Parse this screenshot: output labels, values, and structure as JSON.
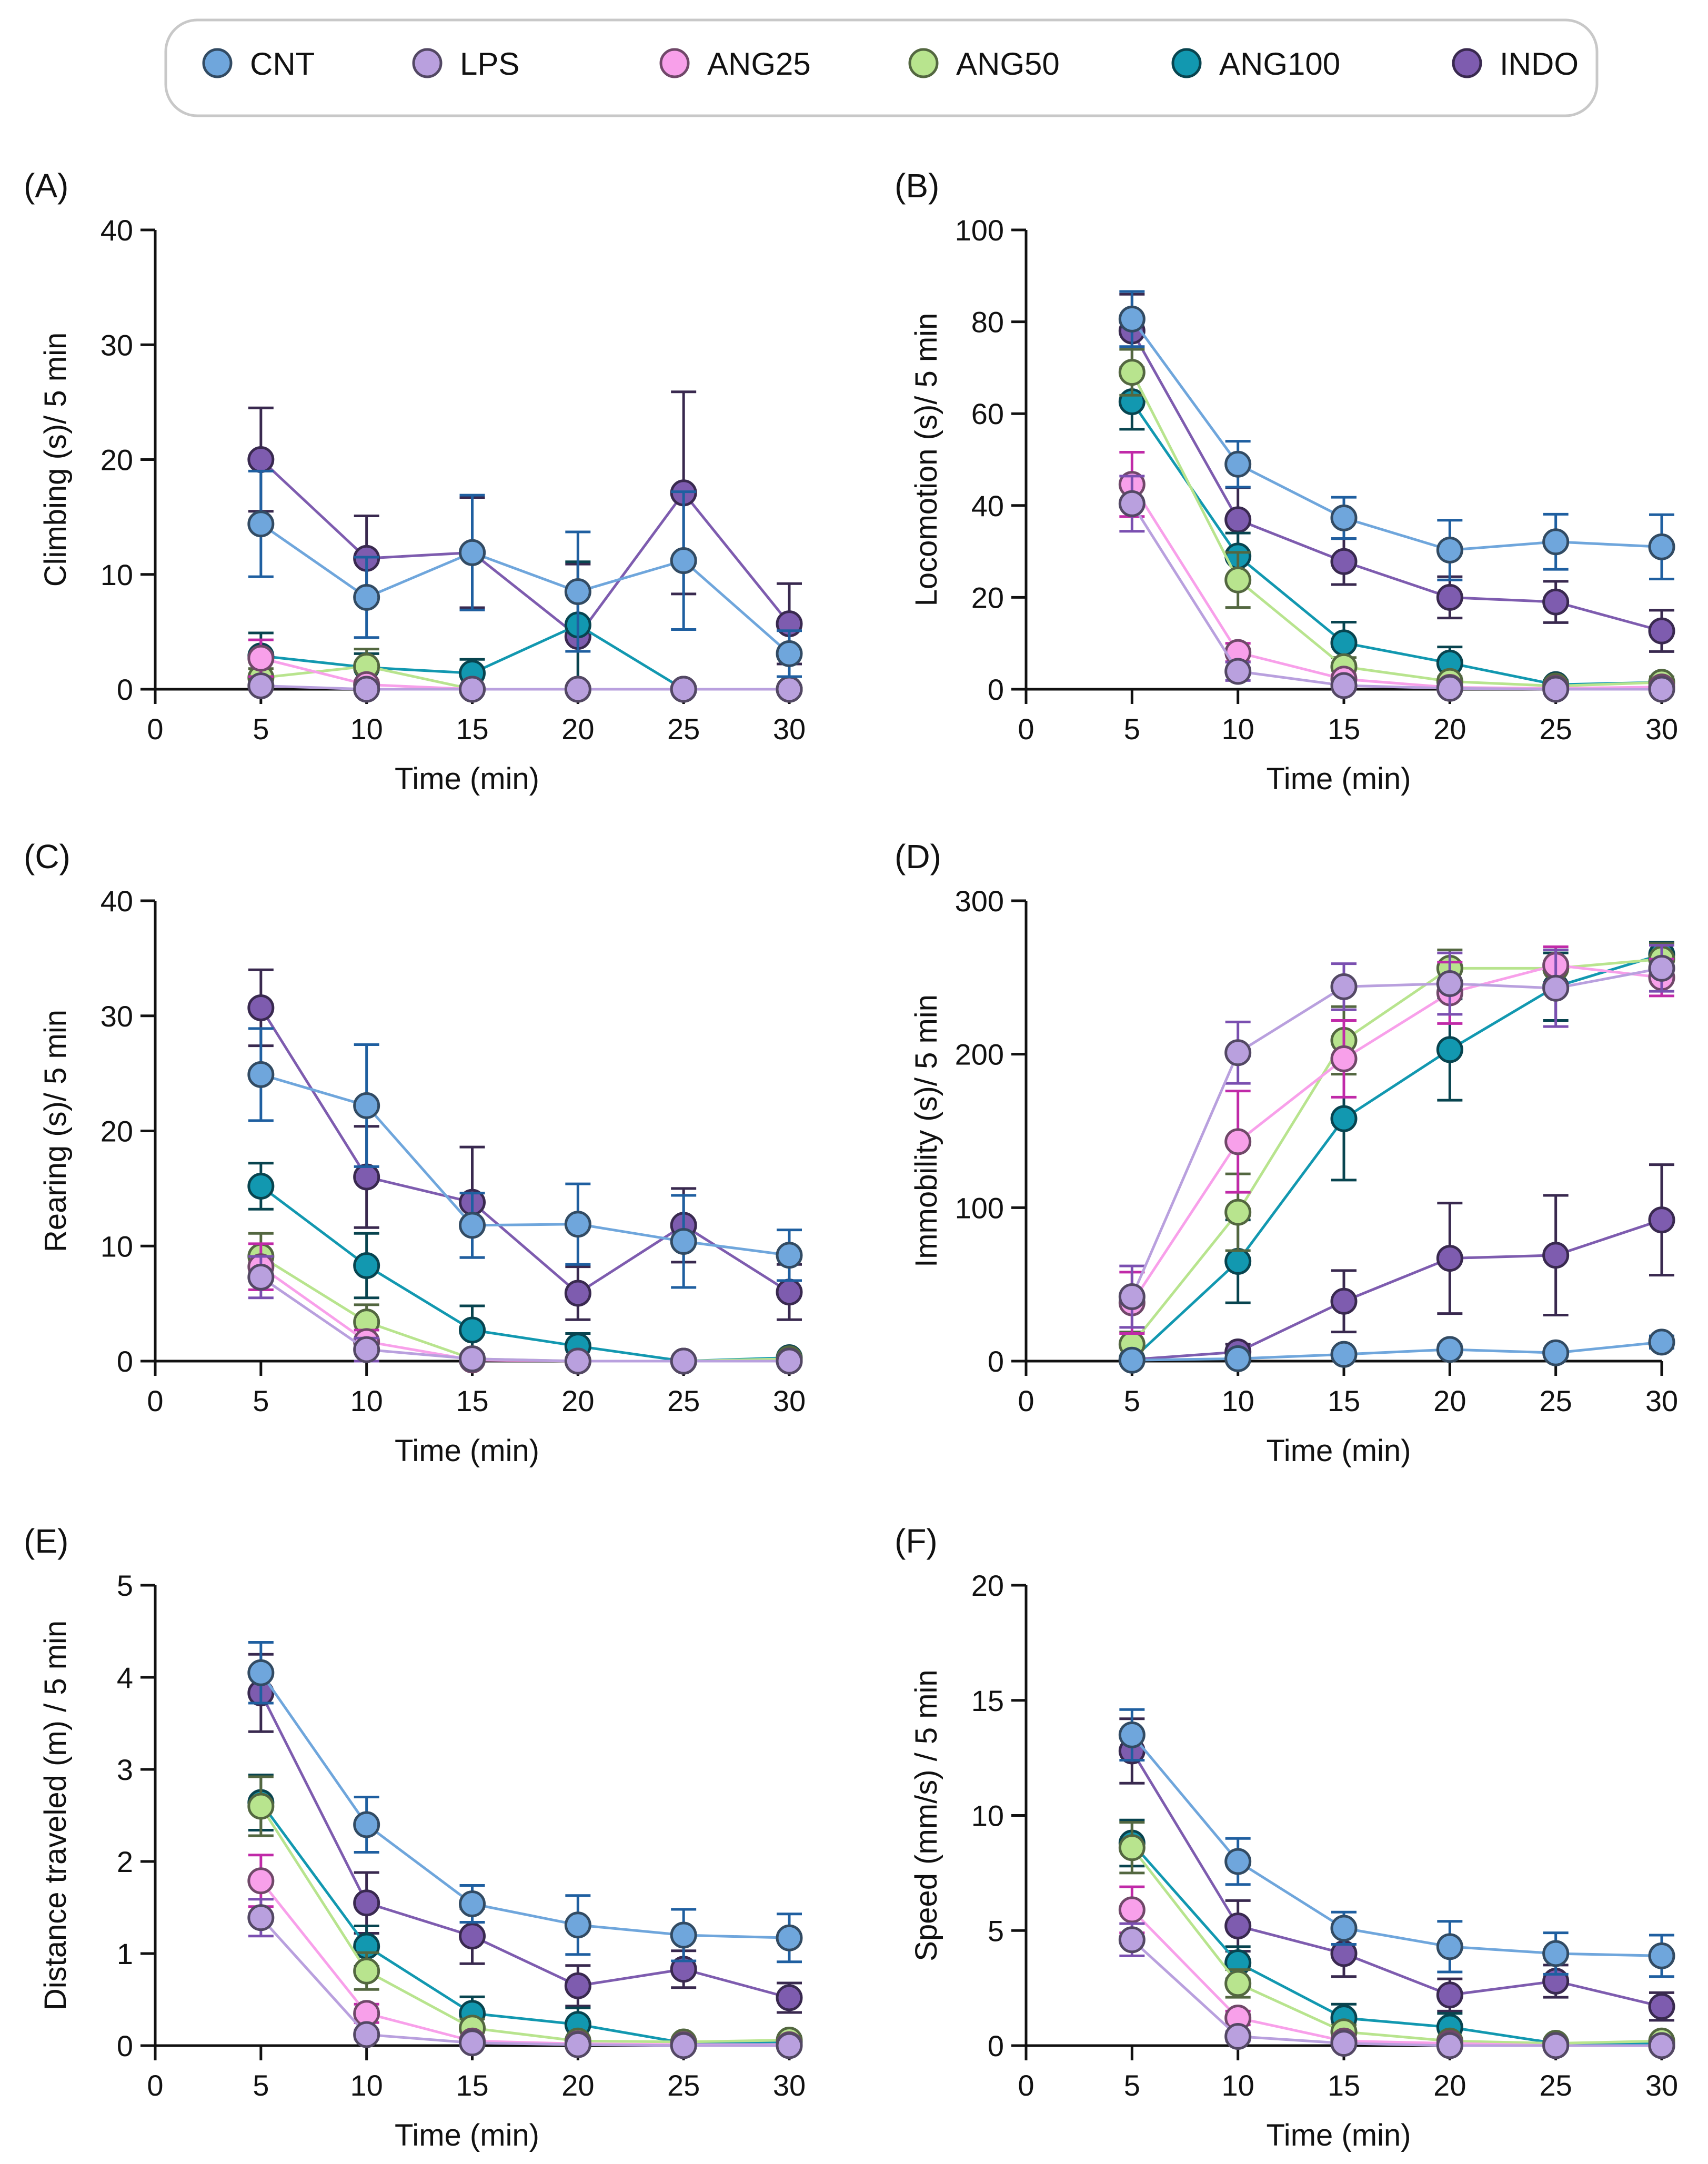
{
  "legend": {
    "entries": [
      {
        "key": "CNT",
        "label": "CNT",
        "color": "#6FA6DC"
      },
      {
        "key": "LPS",
        "label": "LPS",
        "color": "#B9A0DE"
      },
      {
        "key": "ANG25",
        "label": "ANG25",
        "color": "#F8A0EA"
      },
      {
        "key": "ANG50",
        "label": "ANG50",
        "color": "#B8E48E"
      },
      {
        "key": "ANG100",
        "label": "ANG100",
        "color": "#1298B0"
      },
      {
        "key": "INDO",
        "label": "INDO",
        "color": "#7E5CAF"
      }
    ]
  },
  "chart_data": [
    {
      "type": "line",
      "panel": "(A)",
      "ylabel": "Climbing (s)/ 5 min",
      "xlabel": "Time (min)",
      "ylim": [
        0,
        40
      ],
      "yticks": [
        0,
        10,
        20,
        30,
        40
      ],
      "xticks": [
        0,
        5,
        10,
        15,
        20,
        25,
        30
      ],
      "xlim": [
        0,
        30
      ],
      "x": [
        5,
        10,
        15,
        20,
        25,
        30
      ],
      "series": [
        {
          "name": "CNT",
          "values": [
            14.4,
            8.0,
            11.9,
            8.5,
            11.2,
            3.1
          ],
          "err": [
            4.6,
            3.5,
            5.0,
            5.2,
            6.0,
            2.0
          ]
        },
        {
          "name": "LPS",
          "values": [
            0.3,
            0,
            0,
            0,
            0,
            0
          ],
          "err": [
            0.3,
            0,
            0,
            0,
            0,
            0
          ]
        },
        {
          "name": "ANG25",
          "values": [
            2.7,
            0.4,
            0,
            0,
            0,
            0
          ],
          "err": [
            1.6,
            0.4,
            0,
            0,
            0,
            0
          ]
        },
        {
          "name": "ANG50",
          "values": [
            1.0,
            2.0,
            0,
            0,
            0,
            0
          ],
          "err": [
            0.8,
            1.5,
            0,
            0,
            0,
            0
          ]
        },
        {
          "name": "ANG100",
          "values": [
            2.9,
            1.9,
            1.4,
            5.6,
            0,
            0
          ],
          "err": [
            2.0,
            1.2,
            1.2,
            5.5,
            0,
            0
          ]
        },
        {
          "name": "INDO",
          "values": [
            20.0,
            11.4,
            11.9,
            4.6,
            17.1,
            5.7
          ],
          "err": [
            4.5,
            3.7,
            4.8,
            6.3,
            8.8,
            3.5
          ]
        }
      ]
    },
    {
      "type": "line",
      "panel": "(B)",
      "ylabel": "Locomotion (s)/ 5 min",
      "xlabel": "Time (min)",
      "ylim": [
        0,
        100
      ],
      "yticks": [
        0,
        20,
        40,
        60,
        80,
        100
      ],
      "xticks": [
        0,
        5,
        10,
        15,
        20,
        25,
        30
      ],
      "xlim": [
        0,
        30
      ],
      "x": [
        5,
        10,
        15,
        20,
        25,
        30
      ],
      "series": [
        {
          "name": "CNT",
          "values": [
            80.6,
            49.0,
            37.3,
            30.3,
            32.1,
            31.0
          ],
          "err": [
            6.0,
            5.0,
            4.5,
            6.5,
            6.0,
            7.0
          ]
        },
        {
          "name": "LPS",
          "values": [
            40.4,
            3.9,
            0.8,
            0.2,
            0,
            0
          ],
          "err": [
            6.0,
            2.0,
            0.8,
            0.2,
            0,
            0
          ]
        },
        {
          "name": "ANG25",
          "values": [
            44.6,
            8.0,
            2.2,
            0.4,
            0.2,
            0.5
          ],
          "err": [
            7.0,
            2.0,
            1.0,
            0.4,
            0.2,
            0.5
          ]
        },
        {
          "name": "ANG50",
          "values": [
            69.0,
            23.8,
            4.9,
            1.7,
            0.7,
            1.5
          ],
          "err": [
            5.0,
            6.0,
            2.0,
            1.0,
            0.7,
            1.2
          ]
        },
        {
          "name": "ANG100",
          "values": [
            62.6,
            29.0,
            10.1,
            5.7,
            1.0,
            1.5
          ],
          "err": [
            6.0,
            5.0,
            4.5,
            3.5,
            1.0,
            1.2
          ]
        },
        {
          "name": "INDO",
          "values": [
            78.0,
            36.9,
            27.8,
            20.0,
            19.0,
            12.7
          ],
          "err": [
            8.0,
            7.0,
            5.0,
            4.5,
            4.5,
            4.5
          ]
        }
      ]
    },
    {
      "type": "line",
      "panel": "(C)",
      "ylabel": "Rearing (s)/ 5 min",
      "xlabel": "Time (min)",
      "ylim": [
        0,
        40
      ],
      "yticks": [
        0,
        10,
        20,
        30,
        40
      ],
      "xticks": [
        0,
        5,
        10,
        15,
        20,
        25,
        30
      ],
      "xlim": [
        0,
        30
      ],
      "x": [
        5,
        10,
        15,
        20,
        25,
        30
      ],
      "series": [
        {
          "name": "CNT",
          "values": [
            24.9,
            22.2,
            11.8,
            11.9,
            10.4,
            9.2
          ],
          "err": [
            4.0,
            5.3,
            2.8,
            3.5,
            4.0,
            2.2
          ]
        },
        {
          "name": "LPS",
          "values": [
            7.3,
            1.0,
            0.2,
            0,
            0,
            0
          ],
          "err": [
            1.8,
            1.0,
            0.2,
            0,
            0,
            0
          ]
        },
        {
          "name": "ANG25",
          "values": [
            8.2,
            1.7,
            0.1,
            0,
            0,
            0
          ],
          "err": [
            2.0,
            1.0,
            0.1,
            0,
            0,
            0
          ]
        },
        {
          "name": "ANG50",
          "values": [
            9.1,
            3.4,
            0.2,
            0,
            0,
            0.2
          ],
          "err": [
            2.0,
            1.5,
            0.2,
            0,
            0,
            0.2
          ]
        },
        {
          "name": "ANG100",
          "values": [
            15.2,
            8.3,
            2.7,
            1.3,
            0,
            0.3
          ],
          "err": [
            2.0,
            2.8,
            2.1,
            1.1,
            0,
            0.3
          ]
        },
        {
          "name": "INDO",
          "values": [
            30.7,
            16.0,
            13.8,
            5.9,
            11.8,
            6.0
          ],
          "err": [
            3.3,
            4.4,
            4.8,
            2.3,
            3.2,
            2.4
          ]
        }
      ]
    },
    {
      "type": "line",
      "panel": "(D)",
      "ylabel": "Immobility (s)/ 5 min",
      "xlabel": "Time (min)",
      "ylim": [
        0,
        300
      ],
      "yticks": [
        0,
        100,
        200,
        300
      ],
      "xticks": [
        0,
        5,
        10,
        15,
        20,
        25,
        30
      ],
      "xlim": [
        0,
        30
      ],
      "x": [
        5,
        10,
        15,
        20,
        25,
        30
      ],
      "series": [
        {
          "name": "CNT",
          "values": [
            0.6,
            1.6,
            4.4,
            7.6,
            5.4,
            12.4
          ],
          "err": [
            0.6,
            1.5,
            2.0,
            3.0,
            2.5,
            4.0
          ]
        },
        {
          "name": "LPS",
          "values": [
            42.0,
            201.0,
            244.0,
            246.0,
            243.0,
            256.0
          ],
          "err": [
            20.0,
            20.0,
            15.0,
            20.0,
            25.0,
            15.0
          ]
        },
        {
          "name": "ANG25",
          "values": [
            38.0,
            143.0,
            197.0,
            240.0,
            258.0,
            250.0
          ],
          "err": [
            20.0,
            33.0,
            25.0,
            20.0,
            12.0,
            12.0
          ]
        },
        {
          "name": "ANG50",
          "values": [
            11.0,
            97.0,
            209.0,
            256.0,
            256.0,
            262.0
          ],
          "err": [
            8.0,
            25.0,
            22.0,
            12.0,
            12.0,
            10.0
          ]
        },
        {
          "name": "ANG100",
          "values": [
            1.0,
            65.0,
            158.0,
            203.0,
            244.0,
            265.0
          ],
          "err": [
            1.0,
            27.0,
            40.0,
            33.0,
            22.0,
            8.0
          ]
        },
        {
          "name": "INDO",
          "values": [
            1.0,
            6.0,
            39.0,
            67.0,
            69.0,
            92.0
          ],
          "err": [
            1.0,
            5.0,
            20.0,
            36.0,
            39.0,
            36.0
          ]
        }
      ]
    },
    {
      "type": "line",
      "panel": "(E)",
      "ylabel": "Distance traveled (m) / 5 min",
      "xlabel": "Time (min)",
      "ylim": [
        0,
        5
      ],
      "yticks": [
        0,
        1,
        2,
        3,
        4,
        5
      ],
      "xticks": [
        0,
        5,
        10,
        15,
        20,
        25,
        30
      ],
      "xlim": [
        0,
        30
      ],
      "x": [
        5,
        10,
        15,
        20,
        25,
        30
      ],
      "series": [
        {
          "name": "CNT",
          "values": [
            4.05,
            2.4,
            1.54,
            1.31,
            1.2,
            1.17
          ],
          "err": [
            0.33,
            0.3,
            0.2,
            0.32,
            0.28,
            0.26
          ]
        },
        {
          "name": "LPS",
          "values": [
            1.39,
            0.12,
            0.03,
            0.01,
            0,
            0
          ],
          "err": [
            0.2,
            0.05,
            0.02,
            0.01,
            0,
            0
          ]
        },
        {
          "name": "ANG25",
          "values": [
            1.79,
            0.35,
            0.05,
            0.02,
            0.01,
            0.01
          ],
          "err": [
            0.28,
            0.1,
            0.03,
            0.02,
            0.01,
            0.01
          ]
        },
        {
          "name": "ANG50",
          "values": [
            2.6,
            0.81,
            0.19,
            0.05,
            0.04,
            0.06
          ],
          "err": [
            0.32,
            0.2,
            0.1,
            0.04,
            0.03,
            0.04
          ]
        },
        {
          "name": "ANG100",
          "values": [
            2.64,
            1.08,
            0.35,
            0.23,
            0.03,
            0.04
          ],
          "err": [
            0.3,
            0.22,
            0.18,
            0.18,
            0.03,
            0.04
          ]
        },
        {
          "name": "INDO",
          "values": [
            3.83,
            1.55,
            1.19,
            0.65,
            0.83,
            0.52
          ],
          "err": [
            0.42,
            0.33,
            0.3,
            0.22,
            0.2,
            0.16
          ]
        }
      ]
    },
    {
      "type": "line",
      "panel": "(F)",
      "ylabel": "Speed (mm/s) / 5 min",
      "xlabel": "Time (min)",
      "ylim": [
        0,
        20
      ],
      "yticks": [
        0,
        5,
        10,
        15,
        20
      ],
      "xticks": [
        0,
        5,
        10,
        15,
        20,
        25,
        30
      ],
      "xlim": [
        0,
        30
      ],
      "x": [
        5,
        10,
        15,
        20,
        25,
        30
      ],
      "series": [
        {
          "name": "CNT",
          "values": [
            13.5,
            8.0,
            5.1,
            4.3,
            4.0,
            3.9
          ],
          "err": [
            1.1,
            1.0,
            0.7,
            1.1,
            0.9,
            0.9
          ]
        },
        {
          "name": "LPS",
          "values": [
            4.6,
            0.4,
            0.1,
            0,
            0,
            0
          ],
          "err": [
            0.7,
            0.2,
            0.1,
            0,
            0,
            0
          ]
        },
        {
          "name": "ANG25",
          "values": [
            5.9,
            1.2,
            0.2,
            0.1,
            0,
            0
          ],
          "err": [
            1.0,
            0.3,
            0.1,
            0.1,
            0,
            0
          ]
        },
        {
          "name": "ANG50",
          "values": [
            8.6,
            2.7,
            0.6,
            0.2,
            0.1,
            0.2
          ],
          "err": [
            1.1,
            0.6,
            0.3,
            0.1,
            0.1,
            0.1
          ]
        },
        {
          "name": "ANG100",
          "values": [
            8.8,
            3.6,
            1.2,
            0.8,
            0.1,
            0.1
          ],
          "err": [
            1.0,
            0.7,
            0.6,
            0.6,
            0.1,
            0.1
          ]
        },
        {
          "name": "INDO",
          "values": [
            12.8,
            5.2,
            4.0,
            2.2,
            2.8,
            1.7
          ],
          "err": [
            1.4,
            1.1,
            1.0,
            0.7,
            0.7,
            0.6
          ]
        }
      ]
    }
  ]
}
